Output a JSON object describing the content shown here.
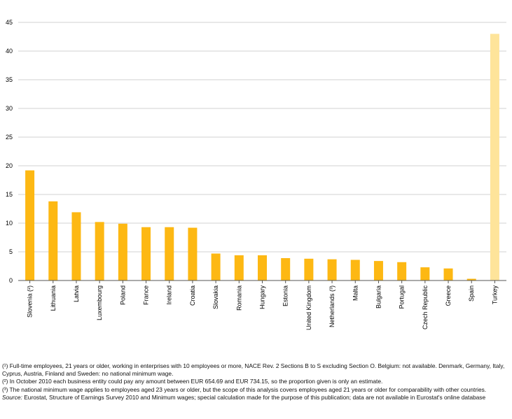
{
  "chart_data": {
    "type": "bar",
    "categories": [
      "Slovenia (²)",
      "Lithuania",
      "Latvia",
      "Luxembourg",
      "Poland",
      "France",
      "Ireland",
      "Croatia",
      "Slovakia",
      "Romania",
      "Hungary",
      "Estonia",
      "United Kingdom",
      "Netherlands (³)",
      "Malta",
      "Bulgaria",
      "Portugal",
      "Czech Republic",
      "Greece",
      "Spain",
      "Turkey"
    ],
    "values": [
      19.2,
      13.8,
      11.9,
      10.2,
      9.9,
      9.3,
      9.3,
      9.2,
      4.7,
      4.4,
      4.4,
      3.9,
      3.8,
      3.7,
      3.6,
      3.4,
      3.2,
      2.3,
      2.1,
      0.3,
      43.0
    ],
    "highlight_index": 20,
    "ylim": [
      0,
      45
    ],
    "yticks": [
      0,
      5,
      10,
      15,
      20,
      25,
      30,
      35,
      40,
      45
    ],
    "grid": true,
    "colors": {
      "bar": "#FDB813",
      "highlight": "#FEE49A",
      "grid": "#d0d0d0",
      "axis": "#555555"
    },
    "title": "",
    "xlabel": "",
    "ylabel": ""
  },
  "notes": {
    "note1": "(¹) Full-time employees, 21 years or older, working in enterprises with 10 employees or more, NACE Rev. 2 Sections B to S excluding Section O. Belgium: not available. Denmark, Germany, Italy, Cyprus, Austria, Finland and Sweden: no national minimum wage.",
    "note2": "(²) In October 2010 each business entity could pay any amount between EUR 654.69 and EUR 734.15, so the proportion given is only an estimate.",
    "note3": "(³) The national minimum wage applies to employees aged 23 years or older, but the scope of this analysis covers employees aged 21 years or older for comparability with other countries.",
    "source_label": "Source:",
    "source_text": " Eurostat, Structure of Earnings Survey 2010 and Minimum wages; special calculation made for the purpose of this publication; data are not available in Eurostat's online database"
  }
}
